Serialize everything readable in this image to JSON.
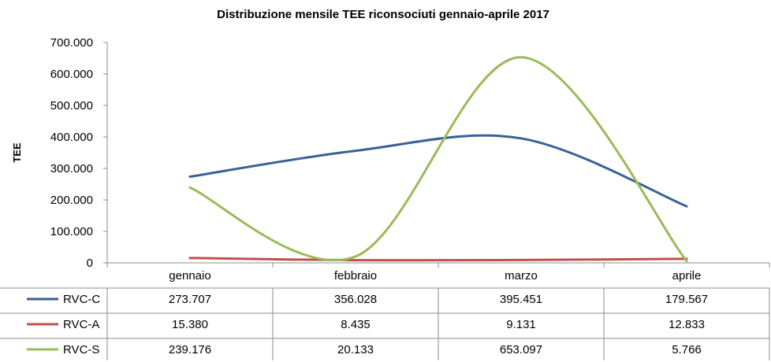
{
  "chart_data": {
    "type": "line",
    "title": "Distribuzione mensile TEE riconsociuti gennaio-aprile 2017",
    "ylabel": "TEE",
    "xlabel": "",
    "categories": [
      "gennaio",
      "febbraio",
      "marzo",
      "aprile"
    ],
    "ylim": [
      0,
      700000
    ],
    "yticks": [
      "0",
      "100.000",
      "200.000",
      "300.000",
      "400.000",
      "500.000",
      "600.000",
      "700.000"
    ],
    "series": [
      {
        "name": "RVC-C",
        "color": "#3a6196",
        "values": [
          273707,
          356028,
          395451,
          179567
        ],
        "labels": [
          "273.707",
          "356.028",
          "395.451",
          "179.567"
        ]
      },
      {
        "name": "RVC-A",
        "color": "#c0504d",
        "values": [
          15380,
          8435,
          9131,
          12833
        ],
        "labels": [
          "15.380",
          "8.435",
          "9.131",
          "12.833"
        ]
      },
      {
        "name": "RVC-S",
        "color": "#9bbb59",
        "values": [
          239176,
          20133,
          653097,
          5766
        ],
        "labels": [
          "239.176",
          "20.133",
          "653.097",
          "5.766"
        ]
      }
    ],
    "legend": "data-table-left",
    "grid": false,
    "smooth": true
  }
}
